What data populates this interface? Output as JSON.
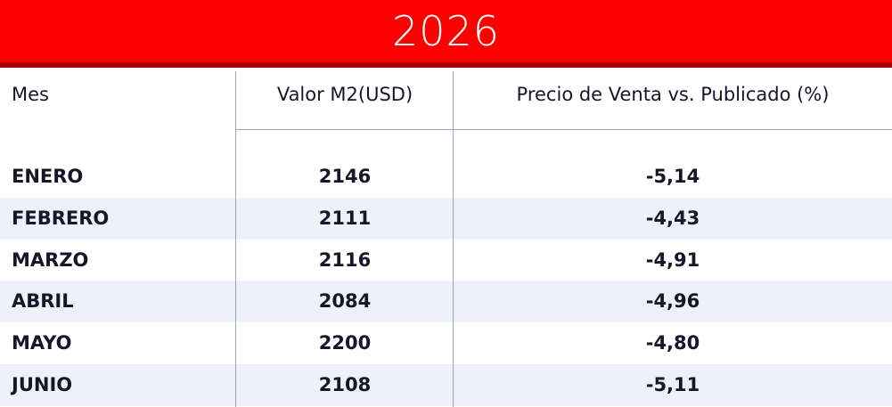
{
  "header": {
    "title": "2026"
  },
  "table": {
    "columns": [
      "Mes",
      "Valor M2(USD)",
      "Precio de Venta vs. Publicado (%)"
    ],
    "rows": [
      [
        "ENERO",
        "2146",
        "-5,14"
      ],
      [
        "FEBRERO",
        "2111",
        "-4,43"
      ],
      [
        "MARZO",
        "2116",
        "-4,91"
      ],
      [
        "ABRIL",
        "2084",
        "-4,96"
      ],
      [
        "MAYO",
        "2200",
        "-4,80"
      ],
      [
        "JUNIO",
        "2108",
        "-5,11"
      ]
    ]
  }
}
